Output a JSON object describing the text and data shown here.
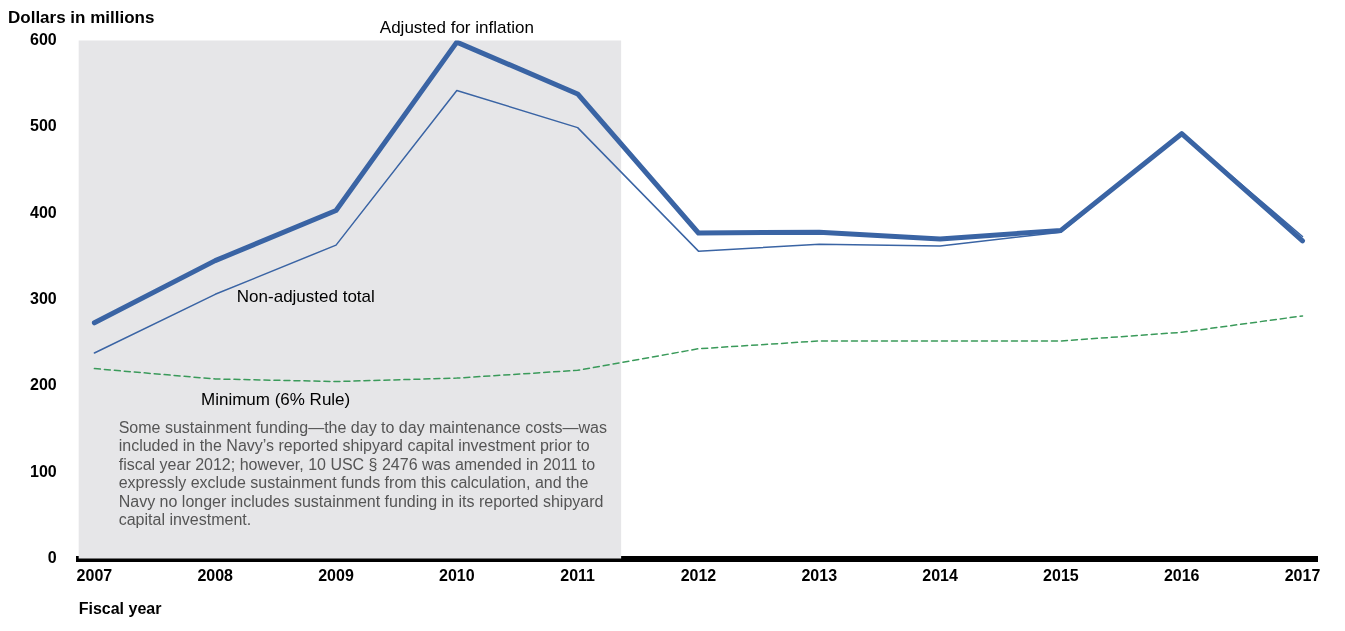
{
  "chart_data": {
    "type": "line",
    "title": "Dollars in millions",
    "xlabel": "Fiscal year",
    "x": [
      2007,
      2008,
      2009,
      2010,
      2011,
      2012,
      2013,
      2014,
      2015,
      2016,
      2017
    ],
    "series": [
      {
        "name": "Adjusted for inflation",
        "color": "#3a64a4",
        "values": [
          273,
          345,
          403,
          598,
          538,
          377,
          378,
          370,
          380,
          492,
          368
        ]
      },
      {
        "name": "Non-adjusted total",
        "color": "#3a64a4",
        "values": [
          238,
          306,
          363,
          542,
          499,
          356,
          364,
          362,
          378,
          492,
          373
        ]
      },
      {
        "name": "Minimum (6% Rule)",
        "color": "#3a9a5a",
        "line_style": "dashed",
        "values": [
          220,
          208,
          205,
          209,
          218,
          243,
          252,
          252,
          252,
          262,
          281
        ]
      }
    ],
    "xlim": [
      2006.87,
      2017.12
    ],
    "xticks": [
      2007,
      2008,
      2009,
      2010,
      2011,
      2012,
      2013,
      2014,
      2015,
      2016,
      2017
    ],
    "ylim": [
      0,
      600
    ],
    "yticks": [
      0,
      100,
      200,
      300,
      400,
      500,
      600
    ],
    "bands": [
      {
        "axis": "x",
        "from": 2006.87,
        "to": 2011.36,
        "color": "#e6e6e8"
      }
    ],
    "annotations": [
      "Some sustainment funding—the day to day maintenance costs—was included in the Navy’s reported shipyard capital investment prior to fiscal year 2012; however, 10 USC § 2476 was amended in 2011 to expressly exclude sustainment funds from this calculation, and the Navy no longer includes sustainment funding in its reported shipyard capital investment."
    ],
    "grid": false,
    "legend": false,
    "marker": "none",
    "line_style": "solid"
  }
}
